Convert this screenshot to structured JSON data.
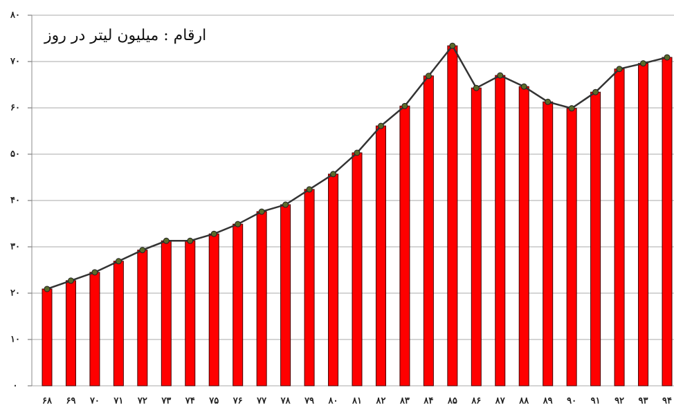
{
  "chart_data": {
    "type": "bar_line",
    "annotation": "ارقام : میلیون لیتر در روز",
    "categories": [
      "۶۸",
      "۶۹",
      "۷۰",
      "۷۱",
      "۷۲",
      "۷۳",
      "۷۴",
      "۷۵",
      "۷۶",
      "۷۷",
      "۷۸",
      "۷۹",
      "۸۰",
      "۸۱",
      "۸۲",
      "۸۳",
      "۸۴",
      "۸۵",
      "۸۶",
      "۸۷",
      "۸۸",
      "۸۹",
      "۹۰",
      "۹۱",
      "۹۲",
      "۹۳",
      "۹۴"
    ],
    "values": [
      20.9,
      22.7,
      24.5,
      26.9,
      29.3,
      31.3,
      31.3,
      32.8,
      34.9,
      37.6,
      39.1,
      42.4,
      45.7,
      50.3,
      56.1,
      60.4,
      66.9,
      73.4,
      64.3,
      67.0,
      64.6,
      61.3,
      59.9,
      63.4,
      68.4,
      69.6,
      70.9
    ],
    "color": "#ff0000",
    "line_color": "#333333",
    "marker_color": "#5a6b2a",
    "ylim": [
      0,
      80
    ],
    "yticks": [
      {
        "value": 0,
        "label": "۰"
      },
      {
        "value": 10,
        "label": "۱۰"
      },
      {
        "value": 20,
        "label": "۲۰"
      },
      {
        "value": 30,
        "label": "۳۰"
      },
      {
        "value": 40,
        "label": "۴۰"
      },
      {
        "value": 50,
        "label": "۵۰"
      },
      {
        "value": 60,
        "label": "۶۰"
      },
      {
        "value": 70,
        "label": "۷۰"
      },
      {
        "value": 80,
        "label": "۸۰"
      }
    ],
    "grid": true
  }
}
